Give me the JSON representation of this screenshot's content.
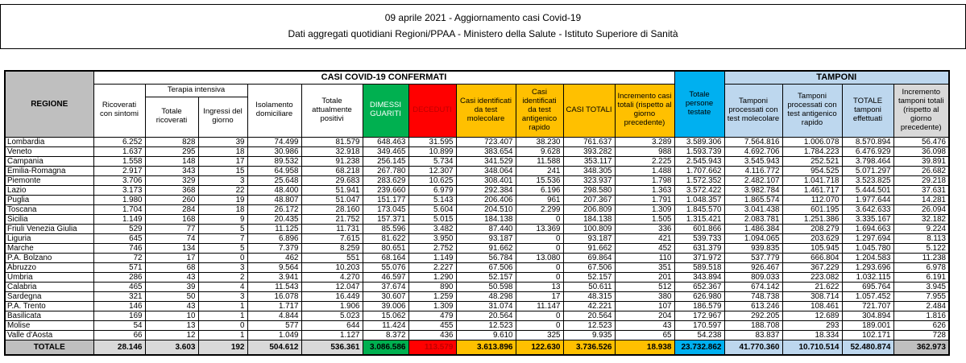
{
  "title": {
    "line1": "09 aprile 2021 - Aggiornamento casi Covid-19",
    "line2": "Dati aggregati quotidiani Regioni/PPAA - Ministero della Salute - Istituto Superiore di Sanità"
  },
  "colors": {
    "green": "#00B050",
    "red": "#FF0000",
    "yellow": "#FFC000",
    "cyan": "#00B0F0",
    "light_blue": "#BDD7EE",
    "gray_dark": "#BFBFBF",
    "gray_light": "#D9D9D9",
    "deceduti_text": "#C00000"
  },
  "table": {
    "bands": {
      "casi": "CASI COVID-19 CONFERMATI",
      "tamponi": "TAMPONI"
    },
    "headers": {
      "regione": "REGIONE",
      "ricoverati": "Ricoverati con sintomi",
      "terapia_intensiva": "Terapia intensiva",
      "totale_ricoverati": "Totale ricoverati",
      "ingressi": "Ingressi del giorno",
      "isolamento": "Isolamento domiciliare",
      "totale_positivi": "Totale attualmente positivi",
      "dimessi": "DIMESSI GUARITI",
      "deceduti": "DECEDUTI",
      "casi_molecolare": "Casi identificati da test molecolare",
      "casi_antigenico": "Casi identificati da test antigenico rapido",
      "casi_totali": "CASI TOTALI",
      "incremento_casi": "Incremento casi totali (rispetto al giorno precedente)",
      "persone_testate": "Totale persone testate",
      "tamponi_molecolare": "Tamponi processati con test molecolare",
      "tamponi_antigenico": "Tamponi processati con test antigenico rapido",
      "totale_tamponi": "TOTALE tamponi effettuati",
      "incremento_tamponi": "Incremento tamponi totali (rispetto al giorno precedente)"
    },
    "column_keys": [
      "ricoverati_sintomi",
      "terapia_totale_ricoverati",
      "terapia_ingressi_giorno",
      "isolamento_domiciliare",
      "totale_attualmente_positivi",
      "dimessi_guariti",
      "deceduti",
      "casi_test_molecolare",
      "casi_test_antigenico",
      "casi_totali",
      "incremento_casi_totali",
      "totale_persone_testate",
      "tamponi_molecolare",
      "tamponi_antigenico",
      "totale_tamponi",
      "incremento_tamponi"
    ],
    "rows": [
      {
        "regione": "Lombardia",
        "values": [
          "6.252",
          "828",
          "39",
          "74.499",
          "81.579",
          "648.463",
          "31.595",
          "723.407",
          "38.230",
          "761.637",
          "3.289",
          "3.589.306",
          "7.564.816",
          "1.006.078",
          "8.570.894",
          "56.476"
        ]
      },
      {
        "regione": "Veneto",
        "values": [
          "1.637",
          "295",
          "18",
          "30.986",
          "32.918",
          "349.465",
          "10.899",
          "383.654",
          "9.628",
          "393.282",
          "988",
          "1.593.739",
          "4.692.706",
          "1.784.223",
          "6.476.929",
          "36.098"
        ]
      },
      {
        "regione": "Campania",
        "values": [
          "1.558",
          "148",
          "17",
          "89.532",
          "91.238",
          "256.145",
          "5.734",
          "341.529",
          "11.588",
          "353.117",
          "2.225",
          "2.545.943",
          "3.545.943",
          "252.521",
          "3.798.464",
          "39.891"
        ]
      },
      {
        "regione": "Emilia-Romagna",
        "values": [
          "2.917",
          "343",
          "15",
          "64.958",
          "68.218",
          "267.780",
          "12.307",
          "348.064",
          "241",
          "348.305",
          "1.488",
          "1.707.662",
          "4.116.772",
          "954.525",
          "5.071.297",
          "26.682"
        ]
      },
      {
        "regione": "Piemonte",
        "values": [
          "3.706",
          "329",
          "3",
          "25.648",
          "29.683",
          "283.629",
          "10.625",
          "308.401",
          "15.536",
          "323.937",
          "1.798",
          "1.572.352",
          "2.482.107",
          "1.041.718",
          "3.523.825",
          "29.218"
        ]
      },
      {
        "regione": "Lazio",
        "values": [
          "3.173",
          "368",
          "22",
          "48.400",
          "51.941",
          "239.660",
          "6.979",
          "292.384",
          "6.196",
          "298.580",
          "1.363",
          "3.572.422",
          "3.982.784",
          "1.461.717",
          "5.444.501",
          "37.631"
        ]
      },
      {
        "regione": "Puglia",
        "values": [
          "1.980",
          "260",
          "19",
          "48.807",
          "51.047",
          "151.177",
          "5.143",
          "206.406",
          "961",
          "207.367",
          "1.791",
          "1.048.357",
          "1.865.574",
          "112.070",
          "1.977.644",
          "14.281"
        ]
      },
      {
        "regione": "Toscana",
        "values": [
          "1.704",
          "284",
          "18",
          "26.172",
          "28.160",
          "173.045",
          "5.604",
          "204.510",
          "2.299",
          "206.809",
          "1.309",
          "1.845.570",
          "3.041.438",
          "601.195",
          "3.642.633",
          "26.094"
        ]
      },
      {
        "regione": "Sicilia",
        "values": [
          "1.149",
          "168",
          "9",
          "20.435",
          "21.752",
          "157.371",
          "5.015",
          "184.138",
          "0",
          "184.138",
          "1.505",
          "1.315.421",
          "2.083.781",
          "1.251.386",
          "3.335.167",
          "32.182"
        ]
      },
      {
        "regione": "Friuli Venezia Giulia",
        "values": [
          "529",
          "77",
          "5",
          "11.125",
          "11.731",
          "85.596",
          "3.482",
          "87.440",
          "13.369",
          "100.809",
          "336",
          "601.866",
          "1.486.384",
          "208.279",
          "1.694.663",
          "9.224"
        ]
      },
      {
        "regione": "Liguria",
        "values": [
          "645",
          "74",
          "7",
          "6.896",
          "7.615",
          "81.622",
          "3.950",
          "93.187",
          "0",
          "93.187",
          "421",
          "539.733",
          "1.094.065",
          "203.629",
          "1.297.694",
          "8.113"
        ]
      },
      {
        "regione": "Marche",
        "values": [
          "746",
          "134",
          "5",
          "7.379",
          "8.259",
          "80.651",
          "2.752",
          "91.662",
          "0",
          "91.662",
          "452",
          "631.379",
          "939.835",
          "105.945",
          "1.045.780",
          "5.122"
        ]
      },
      {
        "regione": "P.A. Bolzano",
        "values": [
          "72",
          "17",
          "0",
          "462",
          "551",
          "68.164",
          "1.149",
          "56.784",
          "13.080",
          "69.864",
          "110",
          "371.972",
          "537.779",
          "666.804",
          "1.204.583",
          "11.238"
        ]
      },
      {
        "regione": "Abruzzo",
        "values": [
          "571",
          "68",
          "3",
          "9.564",
          "10.203",
          "55.076",
          "2.227",
          "67.506",
          "0",
          "67.506",
          "351",
          "589.518",
          "926.467",
          "367.229",
          "1.293.696",
          "6.978"
        ]
      },
      {
        "regione": "Umbria",
        "values": [
          "286",
          "43",
          "2",
          "3.941",
          "4.270",
          "46.597",
          "1.290",
          "52.157",
          "0",
          "52.157",
          "201",
          "343.894",
          "809.033",
          "223.082",
          "1.032.115",
          "6.191"
        ]
      },
      {
        "regione": "Calabria",
        "values": [
          "465",
          "39",
          "4",
          "11.543",
          "12.047",
          "37.674",
          "890",
          "50.598",
          "13",
          "50.611",
          "512",
          "652.367",
          "674.142",
          "21.622",
          "695.764",
          "3.945"
        ]
      },
      {
        "regione": "Sardegna",
        "values": [
          "321",
          "50",
          "3",
          "16.078",
          "16.449",
          "30.607",
          "1.259",
          "48.298",
          "17",
          "48.315",
          "380",
          "626.980",
          "748.738",
          "308.714",
          "1.057.452",
          "7.955"
        ]
      },
      {
        "regione": "P.A. Trento",
        "values": [
          "146",
          "43",
          "1",
          "1.717",
          "1.906",
          "39.006",
          "1.309",
          "31.074",
          "11.147",
          "42.221",
          "107",
          "186.579",
          "613.246",
          "108.461",
          "721.707",
          "2.484"
        ]
      },
      {
        "regione": "Basilicata",
        "values": [
          "169",
          "10",
          "1",
          "4.844",
          "5.023",
          "15.062",
          "479",
          "20.564",
          "0",
          "20.564",
          "204",
          "172.967",
          "292.205",
          "12.689",
          "304.894",
          "1.816"
        ]
      },
      {
        "regione": "Molise",
        "values": [
          "54",
          "13",
          "0",
          "577",
          "644",
          "11.424",
          "455",
          "12.523",
          "0",
          "12.523",
          "43",
          "170.597",
          "188.708",
          "293",
          "189.001",
          "626"
        ]
      },
      {
        "regione": "Valle d'Aosta",
        "values": [
          "66",
          "12",
          "1",
          "1.049",
          "1.127",
          "8.372",
          "436",
          "9.610",
          "325",
          "9.935",
          "65",
          "54.238",
          "83.837",
          "18.334",
          "102.171",
          "728"
        ]
      }
    ],
    "totale": {
      "label": "TOTALE",
      "values": [
        "28.146",
        "3.603",
        "192",
        "504.612",
        "536.361",
        "3.086.586",
        "113.579",
        "3.613.896",
        "122.630",
        "3.736.526",
        "18.938",
        "23.732.862",
        "41.770.360",
        "10.710.514",
        "52.480.874",
        "362.973"
      ]
    }
  }
}
